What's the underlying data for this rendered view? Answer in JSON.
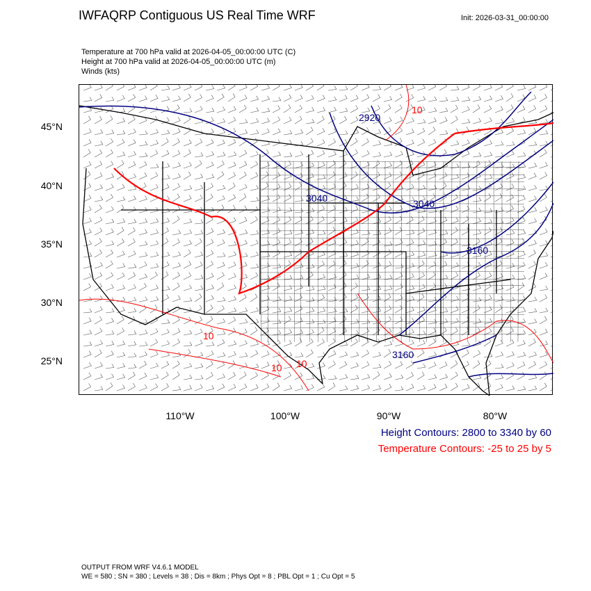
{
  "title": "IWFAQRP Contiguous US Real Time WRF",
  "init": "Init: 2026-03-31_00:00:00",
  "subtitles": [
    "Temperature at 700 hPa valid at 2026-04-05_00:00:00 UTC   (C)",
    "Height at 700 hPa valid at 2026-04-05_00:00:00 UTC   (m)",
    "Winds   (kts)"
  ],
  "lat_labels": [
    "45°N",
    "40°N",
    "35°N",
    "30°N",
    "25°N"
  ],
  "lon_labels": [
    "110°W",
    "100°W",
    "90°W",
    "80°W"
  ],
  "height_labels": [
    "2920",
    "3040",
    "3040",
    "3160",
    "3160"
  ],
  "temp_labels": [
    "10",
    "10",
    "10",
    "10"
  ],
  "legend": {
    "height": "Height Contours: 2800 to 3340 by 60",
    "temperature": "Temperature Contours: -25 to 25 by 5"
  },
  "footer": [
    "OUTPUT FROM WRF V4.6.1 MODEL",
    "WE = 580 ; SN = 380 ; Levels = 38 ; Dis = 8km ; Phys Opt = 8 ; PBL Opt = 1 ; Cu Opt = 5"
  ],
  "colors": {
    "height": "#000080",
    "temperature": "#ff0000"
  }
}
